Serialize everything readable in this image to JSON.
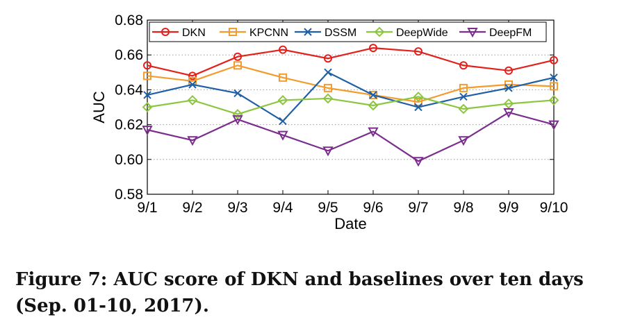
{
  "caption": "Figure 7: AUC score of DKN and baselines over ten days (Sep. 01-10, 2017).",
  "chart_data": {
    "type": "line",
    "title": "",
    "xlabel": "Date",
    "ylabel": "AUC",
    "categories": [
      "9/1",
      "9/2",
      "9/3",
      "9/4",
      "9/5",
      "9/6",
      "9/7",
      "9/8",
      "9/9",
      "9/10"
    ],
    "ylim": [
      0.58,
      0.68
    ],
    "yticks": [
      "0.58",
      "0.60",
      "0.62",
      "0.64",
      "0.66",
      "0.68"
    ],
    "grid": "horizontal dotted",
    "legend_position": "top",
    "series": [
      {
        "name": "DKN",
        "color": "#e3211c",
        "marker": "circle",
        "values": [
          0.654,
          0.648,
          0.659,
          0.663,
          0.658,
          0.664,
          0.662,
          0.654,
          0.651,
          0.657
        ]
      },
      {
        "name": "KPCNN",
        "color": "#f39b2d",
        "marker": "square",
        "values": [
          0.648,
          0.645,
          0.654,
          0.647,
          0.641,
          0.637,
          0.633,
          0.641,
          0.643,
          0.642
        ]
      },
      {
        "name": "DSSM",
        "color": "#1f5fa6",
        "marker": "x",
        "values": [
          0.637,
          0.643,
          0.638,
          0.622,
          0.65,
          0.637,
          0.63,
          0.636,
          0.641,
          0.647
        ]
      },
      {
        "name": "DeepWide",
        "color": "#8cc63f",
        "marker": "diamond",
        "values": [
          0.63,
          0.634,
          0.626,
          0.634,
          0.635,
          0.631,
          0.636,
          0.629,
          0.632,
          0.634
        ]
      },
      {
        "name": "DeepFM",
        "color": "#7b2d8e",
        "marker": "triangle-down",
        "values": [
          0.617,
          0.611,
          0.623,
          0.614,
          0.605,
          0.616,
          0.599,
          0.611,
          0.627,
          0.62
        ]
      }
    ]
  }
}
